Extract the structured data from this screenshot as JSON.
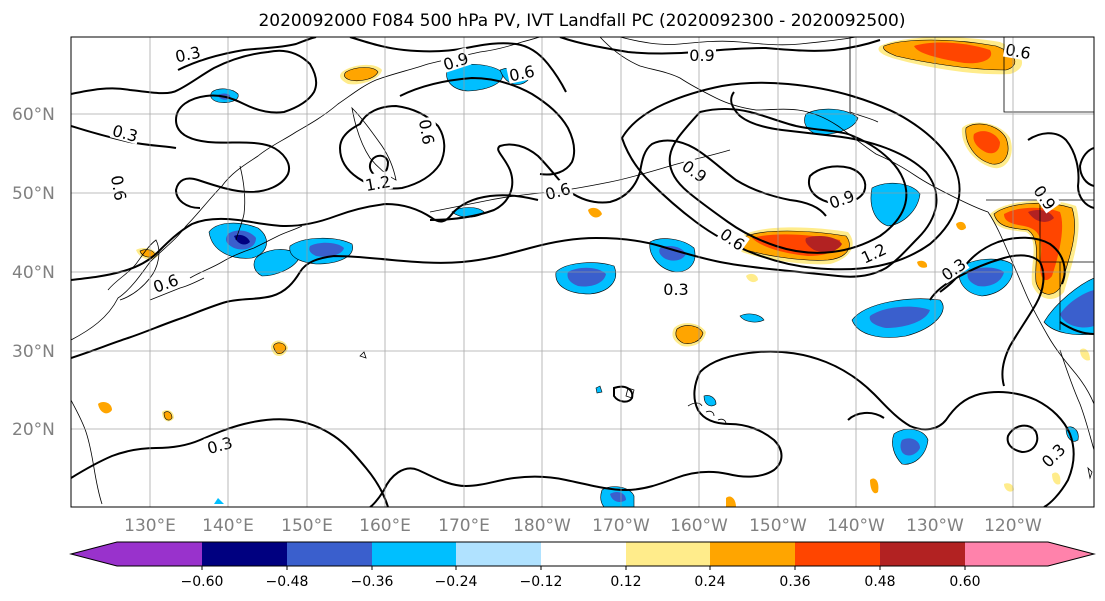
{
  "title": "2020092000 F084 500 hPa PV, IVT Landfall PC (2020092300 - 2020092500)",
  "lat_labels": [
    "60°N",
    "50°N",
    "40°N",
    "30°N",
    "20°N"
  ],
  "lon_labels": [
    "130°E",
    "140°E",
    "150°E",
    "160°E",
    "170°E",
    "180°W",
    "170°W",
    "160°W",
    "150°W",
    "140°W",
    "130°W",
    "120°W"
  ],
  "colorbar": {
    "ticks": [
      "−0.60",
      "−0.48",
      "−0.36",
      "−0.24",
      "−0.12",
      "0.12",
      "0.24",
      "0.36",
      "0.48",
      "0.60"
    ],
    "colors": [
      "#9932cc",
      "#000080",
      "#3a5fcd",
      "#00bfff",
      "#b0e2ff",
      "#ffffff",
      "#ffec8b",
      "#ffa500",
      "#ff4500",
      "#b22222",
      "#ff82ab"
    ]
  },
  "contour_labels": [
    "0.3",
    "0.9",
    "0.6",
    "0.9",
    "0.6",
    "0.3",
    "0.6",
    "1.2",
    "0.6",
    "0.9",
    "0.6",
    "0.9",
    "0.6",
    "1.2",
    "0.3",
    "0.3",
    "0.6",
    "0.3",
    "0.3",
    "0.9"
  ]
}
